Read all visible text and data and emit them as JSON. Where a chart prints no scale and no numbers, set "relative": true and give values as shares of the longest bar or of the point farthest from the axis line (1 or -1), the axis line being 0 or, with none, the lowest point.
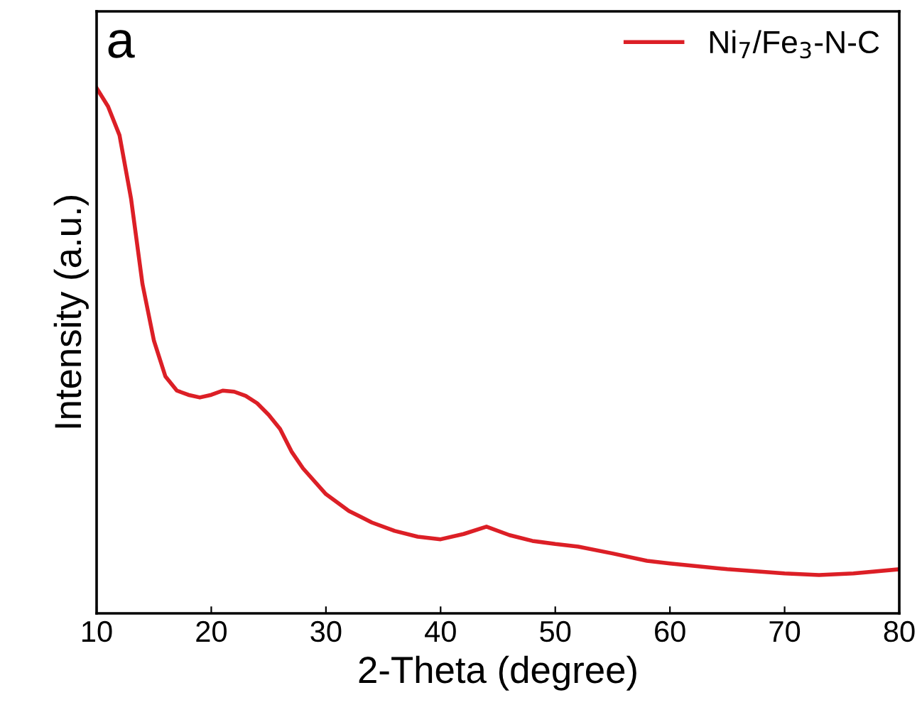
{
  "chart_data": {
    "type": "line",
    "relative": true,
    "xlabel": "2-Theta (degree)",
    "ylabel": "Intensity (a.u.)",
    "annotations": [
      "a"
    ],
    "xlim": [
      10,
      80
    ],
    "xticks": [
      10,
      20,
      30,
      40,
      50,
      60,
      70,
      80
    ],
    "legend": "top right",
    "grid": false,
    "marker": "none",
    "line_style": "solid",
    "tick_labels": "x",
    "series": [
      {
        "name": "Ni$_{7}$/Fe$_{3}$-N-C",
        "color": "#dc1f26",
        "x": [
          10,
          11,
          12,
          13,
          14,
          15,
          16,
          17,
          18,
          19,
          20,
          21,
          22,
          23,
          24,
          25,
          26,
          27,
          28,
          30,
          32,
          34,
          36,
          38,
          40,
          42,
          44,
          46,
          48,
          50,
          52,
          55,
          58,
          60,
          65,
          70,
          73,
          76,
          80
        ],
        "values": [
          1.0,
          0.965,
          0.91,
          0.79,
          0.627,
          0.519,
          0.451,
          0.424,
          0.416,
          0.411,
          0.416,
          0.424,
          0.422,
          0.414,
          0.4,
          0.378,
          0.351,
          0.308,
          0.276,
          0.227,
          0.195,
          0.173,
          0.157,
          0.146,
          0.141,
          0.151,
          0.165,
          0.149,
          0.138,
          0.132,
          0.127,
          0.114,
          0.1,
          0.095,
          0.084,
          0.076,
          0.073,
          0.076,
          0.084
        ]
      }
    ]
  }
}
